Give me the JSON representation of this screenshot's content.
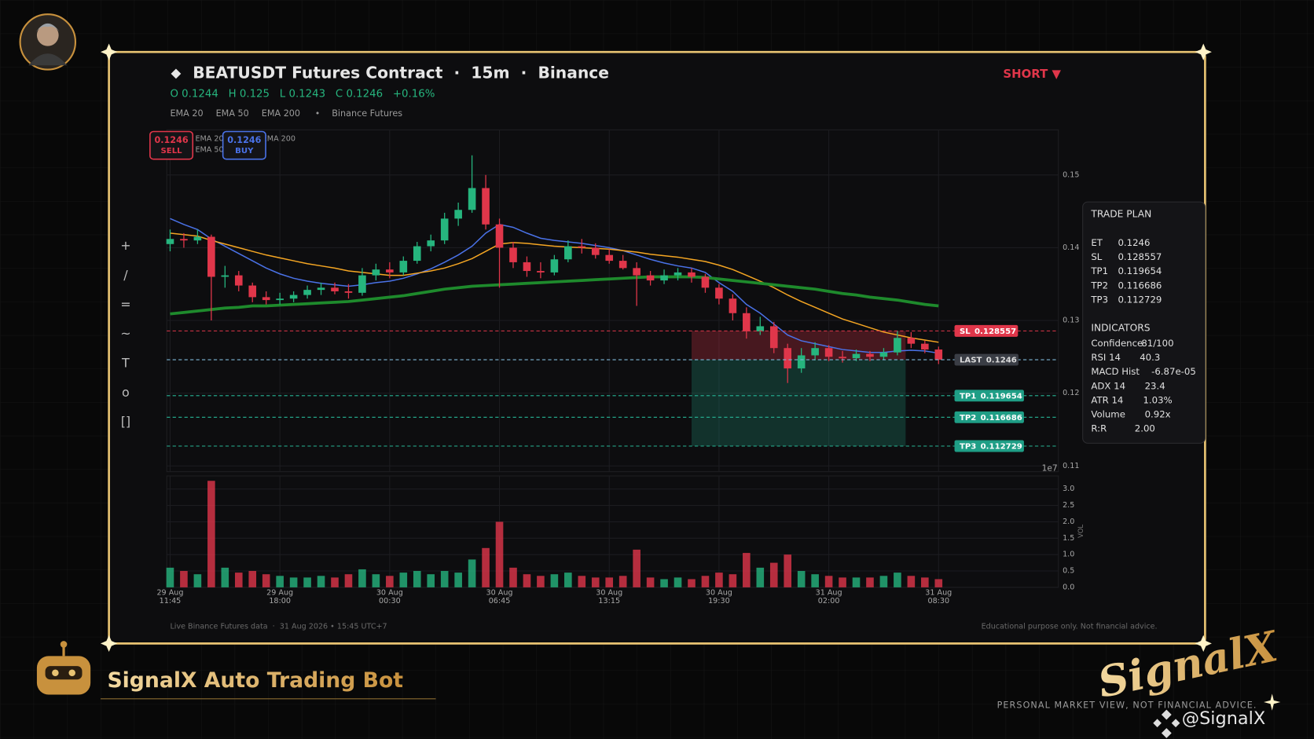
{
  "header": {
    "title": "BEATUSDT Futures Contract  ·  15m  ·  Binance",
    "ohlc": [
      "O 0.1244",
      "H 0.125",
      "L 0.1243",
      "C 0.1246",
      "+0.16%"
    ],
    "source": "Binance Futures",
    "side": "SHORT ▼"
  },
  "orders": {
    "sell_price": 0.1246,
    "sell": "SELL",
    "buy_price": 0.1246,
    "buy": "BUY"
  },
  "toolbar": [
    "+",
    "/",
    "=",
    "~",
    "T",
    "o",
    "[]"
  ],
  "chart_data": {
    "type": "candlestick",
    "categories": [
      "29 Aug\n11:45",
      null,
      null,
      null,
      null,
      null,
      null,
      null,
      "29 Aug\n18:00",
      null,
      null,
      null,
      null,
      null,
      null,
      null,
      "30 Aug\n00:30",
      null,
      null,
      null,
      null,
      null,
      null,
      null,
      "30 Aug\n06:45",
      null,
      null,
      null,
      null,
      null,
      null,
      null,
      "30 Aug\n13:15",
      null,
      null,
      null,
      null,
      null,
      null,
      null,
      "30 Aug\n19:30",
      null,
      null,
      null,
      null,
      null,
      null,
      null,
      "31 Aug\n02:00",
      null,
      null,
      null,
      null,
      null,
      null,
      null,
      "31 Aug\n08:30"
    ],
    "open": [
      0.1405,
      0.1412,
      0.141,
      0.1415,
      0.136,
      0.1362,
      0.1348,
      0.1332,
      0.1328,
      0.133,
      0.1335,
      0.1342,
      0.1345,
      0.134,
      0.1338,
      0.1362,
      0.137,
      0.1366,
      0.1382,
      0.1402,
      0.141,
      0.144,
      0.1452,
      0.1482,
      0.1432,
      0.14,
      0.138,
      0.1368,
      0.1366,
      0.1384,
      0.1402,
      0.14,
      0.139,
      0.1382,
      0.1372,
      0.1362,
      0.1355,
      0.1362,
      0.1366,
      0.136,
      0.1345,
      0.133,
      0.131,
      0.1285,
      0.1292,
      0.1262,
      0.1234,
      0.1252,
      0.1262,
      0.125,
      0.1248,
      0.1254,
      0.125,
      0.1256,
      0.1276,
      0.1268,
      0.126
    ],
    "high": [
      0.1425,
      0.142,
      0.1425,
      0.1418,
      0.1375,
      0.1368,
      0.1352,
      0.134,
      0.1338,
      0.134,
      0.1348,
      0.1352,
      0.1352,
      0.135,
      0.1372,
      0.1378,
      0.138,
      0.1388,
      0.1408,
      0.1418,
      0.1448,
      0.1462,
      0.1527,
      0.15,
      0.144,
      0.1408,
      0.1388,
      0.138,
      0.139,
      0.141,
      0.1412,
      0.1406,
      0.1398,
      0.139,
      0.138,
      0.1368,
      0.137,
      0.1372,
      0.1372,
      0.1364,
      0.135,
      0.1336,
      0.1318,
      0.1305,
      0.1298,
      0.1268,
      0.1262,
      0.127,
      0.1266,
      0.1258,
      0.126,
      0.1258,
      0.1262,
      0.1286,
      0.1284,
      0.1272,
      0.1264
    ],
    "low": [
      0.1395,
      0.14,
      0.1405,
      0.13,
      0.1345,
      0.134,
      0.1325,
      0.1322,
      0.1322,
      0.1325,
      0.133,
      0.1335,
      0.1336,
      0.133,
      0.1334,
      0.1355,
      0.1358,
      0.1362,
      0.1378,
      0.1395,
      0.1405,
      0.143,
      0.1448,
      0.1425,
      0.1345,
      0.1372,
      0.136,
      0.1358,
      0.1362,
      0.138,
      0.1392,
      0.1385,
      0.1378,
      0.137,
      0.132,
      0.1348,
      0.135,
      0.1355,
      0.1352,
      0.1338,
      0.1322,
      0.13,
      0.1275,
      0.128,
      0.1255,
      0.1214,
      0.1228,
      0.1245,
      0.1244,
      0.1242,
      0.1244,
      0.1244,
      0.1246,
      0.1252,
      0.1262,
      0.1255,
      0.124
    ],
    "close": [
      0.1412,
      0.141,
      0.1415,
      0.136,
      0.1362,
      0.1348,
      0.1332,
      0.1328,
      0.133,
      0.1335,
      0.1342,
      0.1345,
      0.134,
      0.1338,
      0.1362,
      0.137,
      0.1366,
      0.1382,
      0.1402,
      0.141,
      0.144,
      0.1452,
      0.1482,
      0.1432,
      0.14,
      0.138,
      0.1368,
      0.1366,
      0.1384,
      0.1402,
      0.14,
      0.139,
      0.1382,
      0.1372,
      0.1362,
      0.1355,
      0.1362,
      0.1366,
      0.136,
      0.1345,
      0.133,
      0.131,
      0.1285,
      0.1292,
      0.1262,
      0.1234,
      0.1252,
      0.1262,
      0.125,
      0.1248,
      0.1254,
      0.125,
      0.1256,
      0.1276,
      0.1268,
      0.126,
      0.1246
    ],
    "up_color": "#26b57e",
    "down_color": "#e0364a",
    "series": [
      {
        "name": "EMA 20",
        "color": "#4a72e8",
        "values": [
          0.144,
          0.1432,
          0.1425,
          0.1412,
          0.1402,
          0.1392,
          0.1382,
          0.1372,
          0.1364,
          0.1358,
          0.1354,
          0.1351,
          0.1349,
          0.1347,
          0.1349,
          0.1352,
          0.1354,
          0.1358,
          0.1364,
          0.1371,
          0.138,
          0.139,
          0.1402,
          0.142,
          0.1432,
          0.1428,
          0.142,
          0.1413,
          0.141,
          0.1408,
          0.1406,
          0.1403,
          0.14,
          0.1396,
          0.139,
          0.1384,
          0.1379,
          0.1375,
          0.1372,
          0.1366,
          0.1352,
          0.134,
          0.1322,
          0.131,
          0.1295,
          0.128,
          0.1272,
          0.1268,
          0.1264,
          0.126,
          0.1258,
          0.1256,
          0.1256,
          0.1258,
          0.1259,
          0.1258,
          0.1255
        ]
      },
      {
        "name": "EMA 50",
        "color": "#f5a623",
        "values": [
          0.142,
          0.1418,
          0.1416,
          0.141,
          0.1405,
          0.14,
          0.1395,
          0.139,
          0.1386,
          0.1382,
          0.1378,
          0.1375,
          0.1372,
          0.1368,
          0.1366,
          0.1364,
          0.1362,
          0.1362,
          0.1365,
          0.1368,
          0.1372,
          0.1378,
          0.1385,
          0.1395,
          0.1405,
          0.1407,
          0.1406,
          0.1404,
          0.1402,
          0.1401,
          0.14,
          0.1399,
          0.1398,
          0.1396,
          0.1394,
          0.1391,
          0.1389,
          0.1387,
          0.1384,
          0.1381,
          0.1376,
          0.137,
          0.1362,
          0.1354,
          0.1345,
          0.1335,
          0.1326,
          0.1318,
          0.131,
          0.1302,
          0.1296,
          0.129,
          0.1284,
          0.128,
          0.1276,
          0.1273,
          0.127
        ]
      },
      {
        "name": "EMA 200",
        "color": "#1e8a2c",
        "values": [
          0.1309,
          0.1311,
          0.1313,
          0.1315,
          0.1317,
          0.1318,
          0.132,
          0.132,
          0.1321,
          0.1322,
          0.1323,
          0.1324,
          0.1325,
          0.1326,
          0.1328,
          0.133,
          0.1332,
          0.1334,
          0.1337,
          0.134,
          0.1343,
          0.1345,
          0.1347,
          0.1348,
          0.1349,
          0.135,
          0.1351,
          0.1352,
          0.1353,
          0.1354,
          0.1355,
          0.1356,
          0.1357,
          0.1358,
          0.1359,
          0.136,
          0.136,
          0.136,
          0.136,
          0.1359,
          0.1357,
          0.1355,
          0.1353,
          0.1351,
          0.1349,
          0.1347,
          0.1345,
          0.1343,
          0.134,
          0.1337,
          0.1335,
          0.1332,
          0.133,
          0.1328,
          0.1325,
          0.1322,
          0.132
        ]
      }
    ],
    "ylim": [
      0.1092,
      0.1562
    ],
    "yticks": [
      0.15,
      0.14,
      0.13,
      0.12,
      0.11
    ],
    "grid": true,
    "last_label": "LAST",
    "last": 0.1246,
    "offset_label": "1e7",
    "volume": {
      "label": "VOL",
      "values": [
        0.6,
        0.5,
        0.4,
        3.25,
        0.6,
        0.45,
        0.5,
        0.4,
        0.35,
        0.3,
        0.3,
        0.35,
        0.3,
        0.4,
        0.55,
        0.4,
        0.35,
        0.45,
        0.5,
        0.4,
        0.5,
        0.45,
        0.85,
        1.2,
        2.0,
        0.6,
        0.4,
        0.35,
        0.4,
        0.45,
        0.35,
        0.3,
        0.3,
        0.35,
        1.15,
        0.3,
        0.25,
        0.3,
        0.25,
        0.35,
        0.45,
        0.4,
        1.05,
        0.6,
        0.75,
        1.0,
        0.5,
        0.4,
        0.35,
        0.3,
        0.3,
        0.3,
        0.35,
        0.45,
        0.35,
        0.3,
        0.25
      ],
      "ylim": [
        0,
        3.4
      ],
      "yticks": [
        {
          "value": 0,
          "label": "0.0"
        },
        0.5,
        {
          "value": 1,
          "label": "1.0"
        },
        1.5,
        {
          "value": 2,
          "label": "2.0"
        },
        2.5,
        {
          "value": 3,
          "label": "3.0"
        }
      ]
    }
  },
  "trade_plan": {
    "title": "TRADE PLAN",
    "levels": [
      {
        "name": "ET",
        "value": 0.1246
      },
      {
        "name": "SL",
        "value": 0.128557
      },
      {
        "name": "TP1",
        "value": 0.119654
      },
      {
        "name": "TP2",
        "value": 0.116686
      },
      {
        "name": "TP3",
        "value": 0.112729
      }
    ],
    "indicators_title": "INDICATORS",
    "indicators": [
      {
        "name": "Confidence",
        "value": "81/100"
      },
      {
        "name": "RSI 14",
        "value": 40.3
      },
      {
        "name": "MACD Hist",
        "value": "-6.87e-05"
      },
      {
        "name": "ADX 14",
        "value": 23.4
      },
      {
        "name": "ATR 14",
        "value": "1.03%"
      },
      {
        "name": "Volume",
        "value": "0.92x"
      },
      {
        "name": "R:R",
        "value": "2.00"
      }
    ]
  },
  "footer": {
    "left": "Live Binance Futures data  ·  31 Aug 2026 • 15:45 UTC+7",
    "right": "Educational purpose only. Not financial advice."
  },
  "branding": {
    "bot": "SignalX Auto Trading Bot",
    "logo": "SignalX",
    "disclaimer": "PERSONAL MARKET VIEW, NOT FINANCIAL ADVICE.",
    "handle": "@SignalX"
  }
}
